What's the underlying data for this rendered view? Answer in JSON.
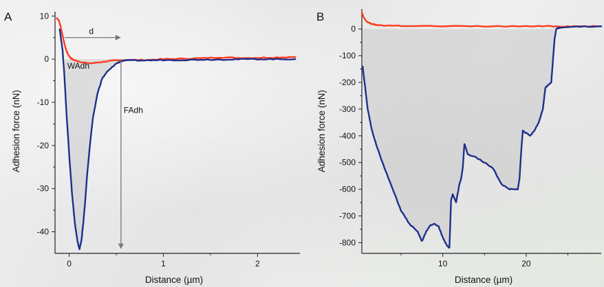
{
  "chart_data": [
    {
      "panel": "A",
      "type": "line",
      "xlabel": "Distance (µm)",
      "ylabel": "Adhesion force (nN)",
      "xlim": [
        -0.15,
        2.45
      ],
      "ylim": [
        -45,
        11
      ],
      "xticks": [
        0,
        1,
        2
      ],
      "yticks": [
        10,
        0,
        -10,
        -20,
        -30,
        -40
      ],
      "grid": false,
      "series": [
        {
          "color": "#ff3b1f",
          "x": [
            -0.13,
            -0.11,
            -0.09,
            -0.07,
            -0.05,
            -0.03,
            -0.01,
            0.02,
            0.05,
            0.1,
            0.2,
            0.3,
            0.4,
            0.5,
            0.6,
            0.8,
            1.0,
            1.2,
            1.4,
            1.6,
            1.8,
            2.0,
            2.2,
            2.4
          ],
          "y": [
            9.5,
            9.0,
            7.5,
            5.5,
            3.5,
            2.0,
            1.0,
            0.2,
            -0.2,
            -0.5,
            -1.0,
            -0.8,
            -0.5,
            -0.3,
            -0.2,
            -0.2,
            0.0,
            0.1,
            0.2,
            0.4,
            0.3,
            0.3,
            0.4,
            0.5
          ]
        },
        {
          "color": "#1f2f8c",
          "x": [
            -0.1,
            -0.07,
            -0.05,
            -0.03,
            0.0,
            0.03,
            0.06,
            0.09,
            0.11,
            0.13,
            0.15,
            0.17,
            0.19,
            0.22,
            0.25,
            0.3,
            0.35,
            0.4,
            0.45,
            0.5,
            0.55,
            0.6,
            0.8,
            1.0,
            1.2,
            1.4,
            1.6,
            1.8,
            2.0,
            2.2,
            2.4
          ],
          "y": [
            7.0,
            2.0,
            -4.0,
            -12.0,
            -22.0,
            -31.0,
            -38.0,
            -42.5,
            -44.0,
            -42.0,
            -38.0,
            -33.0,
            -27.0,
            -20.0,
            -14.0,
            -8.0,
            -4.5,
            -3.0,
            -2.0,
            -1.0,
            -0.5,
            -0.3,
            -0.3,
            -0.2,
            -0.2,
            -0.1,
            -0.1,
            0.0,
            0.0,
            0.0,
            0.0
          ]
        }
      ],
      "annotations": {
        "distance_label": "d",
        "work_label": "WAdh",
        "force_label": "FAdh",
        "distance_arrow_x": [
          -0.05,
          0.55
        ],
        "distance_arrow_y": 5,
        "force_arrow_x": 0.55,
        "force_arrow_y": [
          0,
          -44
        ]
      }
    },
    {
      "panel": "B",
      "type": "line",
      "xlabel": "Distance (µm)",
      "ylabel": "Adhesion force (nN)",
      "xlim": [
        0.3,
        29
      ],
      "ylim": [
        -840,
        75
      ],
      "xticks": [
        10,
        20
      ],
      "yticks": [
        0,
        -100,
        -200,
        -300,
        -400,
        -500,
        -600,
        -700,
        -800
      ],
      "grid": false,
      "series": [
        {
          "color": "#ff3b1f",
          "x": [
            0.3,
            0.5,
            0.8,
            1.2,
            1.6,
            2.0,
            3.0,
            5.0,
            10.0,
            15.0,
            20.0,
            23.0,
            24.0,
            26.0,
            29.0
          ],
          "y": [
            60,
            45,
            30,
            22,
            18,
            15,
            13,
            12,
            10,
            10,
            10,
            10,
            10,
            10,
            10
          ]
        },
        {
          "color": "#1f2f8c",
          "x": [
            0.4,
            1.0,
            1.5,
            2.0,
            3.0,
            4.0,
            5.0,
            6.0,
            7.0,
            7.5,
            8.0,
            8.5,
            9.0,
            9.5,
            10.0,
            10.5,
            10.8,
            11.0,
            11.2,
            11.6,
            12.0,
            12.2,
            12.4,
            12.6,
            13.0,
            14.0,
            15.0,
            16.0,
            17.0,
            18.0,
            19.0,
            19.2,
            19.4,
            19.6,
            20.0,
            20.5,
            21.0,
            21.5,
            22.0,
            22.3,
            22.6,
            23.0,
            23.2,
            23.4,
            23.6,
            24.0,
            26.0,
            29.0
          ],
          "y": [
            -140,
            -300,
            -380,
            -430,
            -520,
            -600,
            -680,
            -730,
            -760,
            -795,
            -760,
            -735,
            -730,
            -740,
            -780,
            -810,
            -820,
            -640,
            -620,
            -650,
            -580,
            -560,
            -520,
            -430,
            -470,
            -480,
            -500,
            -520,
            -580,
            -600,
            -600,
            -560,
            -460,
            -380,
            -390,
            -400,
            -380,
            -350,
            -300,
            -220,
            -210,
            -200,
            -120,
            -40,
            0,
            5,
            8,
            10
          ]
        }
      ]
    }
  ],
  "panels": {
    "a_letter": "A",
    "b_letter": "B"
  }
}
